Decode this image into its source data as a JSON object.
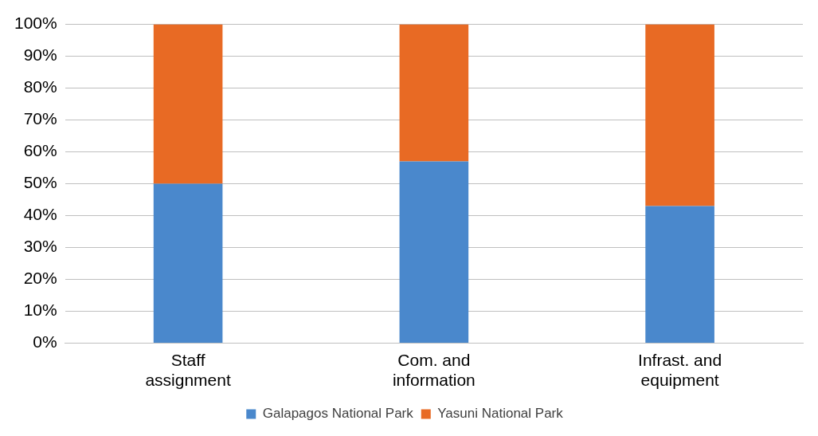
{
  "chart_data": {
    "type": "bar",
    "stacked": true,
    "categories": [
      "Staff assignment",
      "Com. and information",
      "Infrast. and equipment"
    ],
    "series": [
      {
        "name": "Galapagos National Park",
        "color": "#4a88cc",
        "values": [
          50,
          57,
          43
        ]
      },
      {
        "name": "Yasuni National Park",
        "color": "#e86a24",
        "values": [
          50,
          43,
          57
        ]
      }
    ],
    "ylim": [
      0,
      100
    ],
    "yticks": [
      {
        "value": 0,
        "label": "0%"
      },
      {
        "value": 10,
        "label": "10%"
      },
      {
        "value": 20,
        "label": "20%"
      },
      {
        "value": 30,
        "label": "30%"
      },
      {
        "value": 40,
        "label": "40%"
      },
      {
        "value": 50,
        "label": "50%"
      },
      {
        "value": 60,
        "label": "60%"
      },
      {
        "value": 70,
        "label": "70%"
      },
      {
        "value": 80,
        "label": "80%"
      },
      {
        "value": 90,
        "label": "90%"
      },
      {
        "value": 100,
        "label": "100%"
      }
    ],
    "grid": "y",
    "legend": "bottom"
  }
}
